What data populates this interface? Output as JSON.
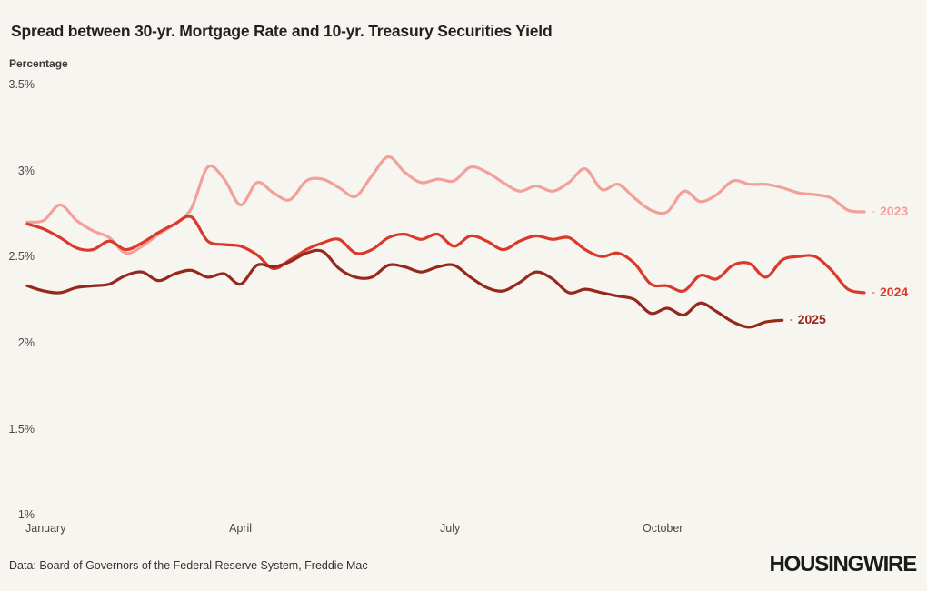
{
  "header": {
    "title": "Spread between 30-yr. Mortgage Rate and 10-yr. Treasury Securities Yield"
  },
  "footer": {
    "source": "Data: Board of Governors of the Federal Reserve System, Freddie Mac",
    "brand": "HOUSINGWIRE"
  },
  "chart_data": {
    "type": "line",
    "title": "Spread between 30-yr. Mortgage Rate and 10-yr. Treasury Securities Yield",
    "ylabel": "Percentage",
    "xlabel": "",
    "unit": "percent",
    "x_frequency": "weekly",
    "legend_dash": "-",
    "legend_position": "right-of-line-end",
    "grid": false,
    "y_axis": {
      "range": [
        1,
        3.5
      ],
      "tick_values": [
        3.5,
        3,
        2.5,
        2,
        1.5,
        1
      ],
      "tick_labels": [
        "3.5%",
        "3%",
        "2.5%",
        "2%",
        "1.5%",
        "1%"
      ]
    },
    "x_axis": {
      "tick_labels": [
        "January",
        "April",
        "July",
        "October"
      ]
    },
    "series": [
      {
        "name": "2023",
        "color": "#f2a09a",
        "values": [
          2.7,
          2.71,
          2.8,
          2.71,
          2.65,
          2.61,
          2.52,
          2.56,
          2.63,
          2.69,
          2.78,
          3.02,
          2.95,
          2.8,
          2.93,
          2.87,
          2.83,
          2.94,
          2.95,
          2.9,
          2.85,
          2.97,
          3.08,
          2.99,
          2.93,
          2.95,
          2.94,
          3.02,
          2.99,
          2.93,
          2.88,
          2.91,
          2.88,
          2.93,
          3.01,
          2.89,
          2.92,
          2.84,
          2.77,
          2.76,
          2.88,
          2.82,
          2.86,
          2.94,
          2.92,
          2.92,
          2.9,
          2.87,
          2.86,
          2.84,
          2.77,
          2.76
        ]
      },
      {
        "name": "2024",
        "color": "#d93a2b",
        "values": [
          2.69,
          2.66,
          2.61,
          2.55,
          2.54,
          2.59,
          2.54,
          2.58,
          2.64,
          2.69,
          2.73,
          2.59,
          2.57,
          2.56,
          2.51,
          2.43,
          2.48,
          2.54,
          2.58,
          2.6,
          2.52,
          2.54,
          2.61,
          2.63,
          2.6,
          2.63,
          2.56,
          2.62,
          2.59,
          2.54,
          2.59,
          2.62,
          2.6,
          2.61,
          2.54,
          2.5,
          2.52,
          2.46,
          2.34,
          2.33,
          2.3,
          2.39,
          2.37,
          2.45,
          2.46,
          2.38,
          2.48,
          2.5,
          2.5,
          2.42,
          2.31,
          2.29
        ]
      },
      {
        "name": "2025",
        "color": "#96281c",
        "values": [
          2.33,
          2.3,
          2.29,
          2.32,
          2.33,
          2.34,
          2.39,
          2.41,
          2.36,
          2.4,
          2.42,
          2.38,
          2.4,
          2.34,
          2.45,
          2.44,
          2.47,
          2.52,
          2.53,
          2.43,
          2.38,
          2.38,
          2.45,
          2.44,
          2.41,
          2.44,
          2.45,
          2.38,
          2.32,
          2.3,
          2.35,
          2.41,
          2.37,
          2.29,
          2.31,
          2.29,
          2.27,
          2.25,
          2.17,
          2.2,
          2.16,
          2.23,
          2.18,
          2.12,
          2.09,
          2.12,
          2.13
        ]
      }
    ]
  }
}
